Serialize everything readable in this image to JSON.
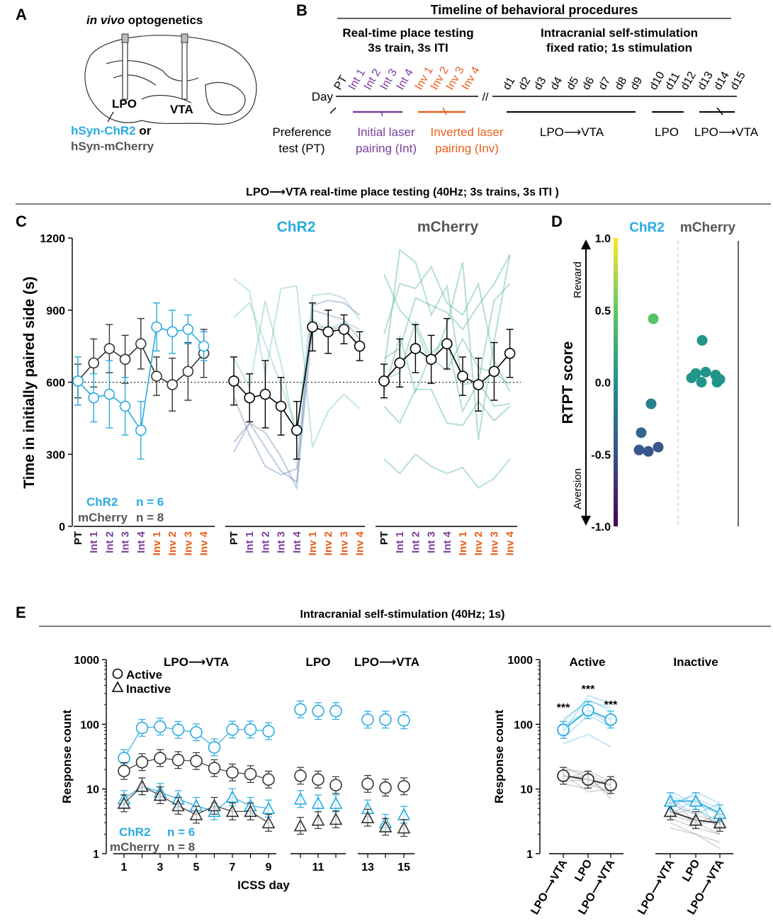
{
  "colors": {
    "chr2": "#29abe2",
    "mcherry": "#555555",
    "interval": "#7b3f9e",
    "inverted": "#e8601c",
    "teal": "#2a9d8f",
    "black": "#000000"
  },
  "panels": {
    "a": "A",
    "b": "B",
    "c": "C",
    "d": "D",
    "e": "E"
  },
  "panel_a": {
    "title_italic": "in vivo",
    "title_rest": " optogenetics",
    "lpo": "LPO",
    "vta": "VTA",
    "chr2_label": "hSyn-ChR2",
    "or": " or",
    "mcherry_label": "hSyn-mCherry",
    "brain_icon": "brain-sagittal-icon"
  },
  "panel_b": {
    "title": "Timeline of behavioral procedures",
    "rtpt_title_1": "Real-time place testing",
    "rtpt_title_2": "3s train, 3s ITI",
    "icss_title_1": "Intracranial self-stimulation",
    "icss_title_2": "fixed ratio; 1s stimulation",
    "day_label": "Day",
    "pt": "PT",
    "int_days": [
      "Int 1",
      "Int 2",
      "Int 3",
      "Int 4"
    ],
    "inv_days": [
      "Inv 1",
      "Inv 2",
      "Inv 3",
      "Inv 4"
    ],
    "icss_days": [
      "d1",
      "d2",
      "d3",
      "d4",
      "d5",
      "d6",
      "d7",
      "d8",
      "d9",
      "d10",
      "d11",
      "d12",
      "d13",
      "d14",
      "d15"
    ],
    "preference_1": "Preference",
    "preference_2": "test (PT)",
    "initial_1": "Initial laser",
    "initial_2": "pairing (Int)",
    "inverted_1": "Inverted laser",
    "inverted_2": "pairing (Inv)",
    "seg1": "LPO⟶VTA",
    "seg2": "LPO",
    "seg3": "LPO⟶VTA"
  },
  "section_c_title": "LPO⟶VTA real-time place testing (40Hz; 3s trains, 3s ITI )",
  "section_e_title": "Intracranial self-stimulation (40Hz; 1s)",
  "chart_data": [
    {
      "id": "C",
      "type": "line",
      "ylabel": "Time in initially paired side (s)",
      "ylim": [
        0,
        1200
      ],
      "yticks": [
        0,
        300,
        600,
        900,
        1200
      ],
      "reference_line": 600,
      "categories": [
        "PT",
        "Int 1",
        "Int 2",
        "Int 3",
        "Int 4",
        "Inv 1",
        "Inv 2",
        "Inv 3",
        "Inv 4"
      ],
      "subplot_titles": [
        "",
        "ChR2",
        "mCherry"
      ],
      "legend": [
        {
          "label": "ChR2",
          "n": "n = 6"
        },
        {
          "label": "mCherry",
          "n": "n = 8"
        }
      ],
      "series": [
        {
          "name": "ChR2 mean",
          "values": [
            605,
            535,
            550,
            500,
            400,
            830,
            810,
            820,
            750
          ],
          "err": [
            100,
            100,
            140,
            120,
            120,
            100,
            90,
            60,
            60
          ]
        },
        {
          "name": "mCherry mean",
          "values": [
            605,
            680,
            740,
            695,
            760,
            625,
            590,
            645,
            720
          ],
          "err": [
            70,
            100,
            100,
            100,
            105,
            80,
            110,
            120,
            100
          ]
        }
      ],
      "chr2_individual": [
        [
          310,
          430,
          390,
          290,
          160,
          840,
          820,
          830,
          740
        ],
        [
          350,
          430,
          330,
          230,
          185,
          900,
          880,
          860,
          780
        ],
        [
          540,
          380,
          250,
          215,
          240,
          920,
          940,
          930,
          880
        ],
        [
          700,
          580,
          940,
          680,
          360,
          960,
          970,
          950,
          860
        ],
        [
          870,
          930,
          760,
          590,
          410,
          860,
          820,
          850,
          820
        ],
        [
          1030,
          980,
          630,
          990,
          1000,
          330,
          480,
          550,
          490
        ]
      ],
      "mcherry_individual": [
        [
          280,
          220,
          300,
          250,
          220,
          245,
          160,
          200,
          280
        ],
        [
          500,
          430,
          570,
          570,
          430,
          420,
          520,
          440,
          500
        ],
        [
          560,
          790,
          560,
          720,
          780,
          480,
          600,
          500,
          510
        ],
        [
          610,
          640,
          850,
          700,
          650,
          780,
          660,
          640,
          590
        ],
        [
          650,
          1150,
          1100,
          880,
          1000,
          590,
          600,
          940,
          1010
        ],
        [
          700,
          740,
          950,
          920,
          890,
          820,
          920,
          1010,
          1130
        ],
        [
          800,
          1010,
          990,
          1080,
          930,
          880,
          1010,
          690,
          560
        ],
        [
          1050,
          900,
          830,
          670,
          840,
          1100,
          360,
          770,
          1130
        ]
      ]
    },
    {
      "id": "D",
      "type": "scatter",
      "ylabel": "RTPT score",
      "ylim": [
        -1.0,
        1.0
      ],
      "yticks": [
        "1.0",
        "0.5",
        "0.0",
        "-0.5",
        "-1.0"
      ],
      "ytick_values": [
        1.0,
        0.5,
        0.0,
        -0.5,
        -1.0
      ],
      "arrow_top": "Reward",
      "arrow_bottom": "Aversion",
      "categories": [
        "ChR2",
        "mCherry"
      ],
      "series": [
        {
          "name": "ChR2",
          "values": [
            0.44,
            -0.15,
            -0.35,
            -0.47,
            -0.48,
            -0.45
          ]
        },
        {
          "name": "mCherry",
          "values": [
            0.29,
            0.06,
            0.07,
            0.05,
            0.02,
            0.03,
            0.0,
            0.0
          ]
        }
      ]
    },
    {
      "id": "E-left",
      "type": "line",
      "ylabel": "Response count",
      "xlabel": "ICSS day",
      "yscale": "log",
      "ylim": [
        1,
        1000
      ],
      "yticks": [
        "1",
        "10",
        "100",
        "1000"
      ],
      "xticks": [
        "1",
        "3",
        "5",
        "7",
        "9",
        "11",
        "13",
        "15"
      ],
      "group_titles": [
        "LPO⟶VTA",
        "LPO",
        "LPO⟶VTA"
      ],
      "legend_markers": [
        "Active",
        "Inactive"
      ],
      "legend": [
        {
          "label": "ChR2",
          "n": "n = 6"
        },
        {
          "label": "mCherry",
          "n": "n = 8"
        }
      ],
      "x": [
        1,
        2,
        3,
        4,
        5,
        6,
        7,
        8,
        9,
        10,
        11,
        12,
        13,
        14,
        15
      ],
      "series": [
        {
          "name": "ChR2 Active",
          "values": [
            30,
            88,
            92,
            82,
            75,
            44,
            83,
            83,
            78,
            170,
            160,
            160,
            118,
            118,
            115
          ]
        },
        {
          "name": "mCherry Active",
          "values": [
            19,
            26,
            30,
            28,
            27,
            21,
            18,
            17,
            14,
            16,
            14,
            11.5,
            12,
            10.5,
            11
          ]
        },
        {
          "name": "ChR2 Inactive",
          "values": [
            7,
            11,
            9,
            7,
            5.5,
            4.5,
            7.5,
            5.5,
            5,
            7,
            6,
            6,
            5,
            3,
            4
          ]
        },
        {
          "name": "mCherry Inactive",
          "values": [
            6,
            11,
            8,
            5.5,
            4,
            5.5,
            4.5,
            4.5,
            3,
            2.7,
            3.3,
            3.4,
            3.6,
            2.6,
            2.5
          ]
        }
      ]
    },
    {
      "id": "E-right",
      "type": "line",
      "ylabel": "Response count",
      "yscale": "log",
      "ylim": [
        1,
        1000
      ],
      "yticks": [
        "1",
        "10",
        "100",
        "1000"
      ],
      "groups": [
        "Active",
        "Inactive"
      ],
      "categories": [
        "LPO⟶VTA",
        "LPO",
        "LPO⟶VTA"
      ],
      "annotations": [
        "***",
        "***",
        "***"
      ],
      "series": [
        {
          "name": "ChR2 Active",
          "values": [
            82,
            165,
            118
          ]
        },
        {
          "name": "mCherry Active",
          "values": [
            16,
            14,
            11.5
          ]
        },
        {
          "name": "ChR2 Inactive",
          "values": [
            6.5,
            6.5,
            4.2
          ]
        },
        {
          "name": "mCherry Inactive",
          "values": [
            4.5,
            3.3,
            3.0
          ]
        }
      ],
      "chr2_active_individual": [
        [
          60,
          140,
          90
        ],
        [
          120,
          230,
          180
        ],
        [
          75,
          280,
          210
        ],
        [
          95,
          160,
          100
        ],
        [
          50,
          70,
          45
        ],
        [
          110,
          240,
          160
        ]
      ],
      "mcherry_active_individual": [
        [
          18,
          12,
          9
        ],
        [
          14,
          19,
          13
        ],
        [
          22,
          15,
          8
        ],
        [
          12,
          10,
          15
        ],
        [
          15,
          16,
          7
        ],
        [
          20,
          18,
          11
        ],
        [
          17,
          9,
          10
        ],
        [
          13,
          14,
          12
        ]
      ],
      "chr2_inactive_individual": [
        [
          5,
          9,
          6
        ],
        [
          8,
          5,
          3
        ],
        [
          4,
          7,
          5
        ],
        [
          6,
          8,
          2
        ],
        [
          9,
          6,
          4
        ],
        [
          7,
          4,
          6
        ]
      ],
      "mcherry_inactive_individual": [
        [
          4,
          3,
          2
        ],
        [
          6,
          4,
          3
        ],
        [
          3,
          2,
          1.5
        ],
        [
          5,
          3,
          4
        ],
        [
          2.5,
          2,
          1.2
        ],
        [
          4,
          5,
          2.5
        ],
        [
          7,
          3,
          3
        ],
        [
          3.5,
          2.5,
          2
        ]
      ]
    }
  ]
}
